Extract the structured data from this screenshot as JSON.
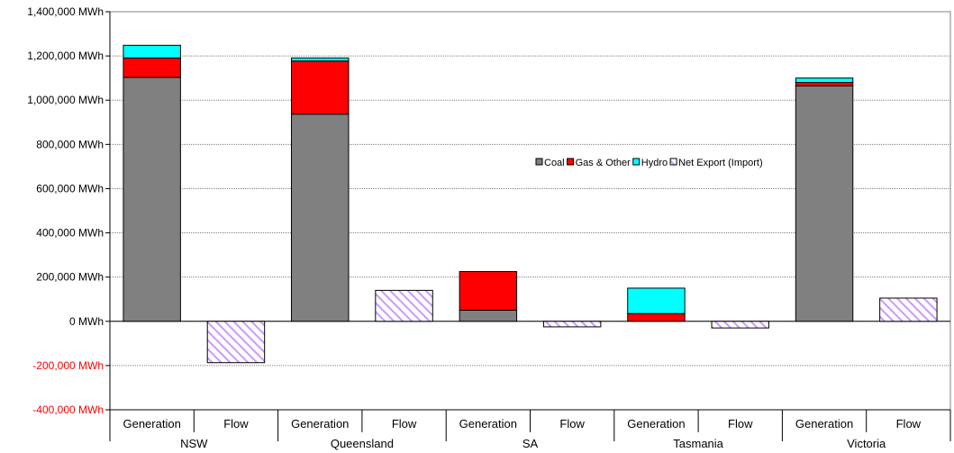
{
  "chart_data": {
    "type": "bar",
    "stacked": true,
    "unit_suffix": " MWh",
    "ylim": [
      -400000,
      1400000
    ],
    "ytick_step": 200000,
    "grid": true,
    "legend_position": "center-right",
    "colors": {
      "Coal": "#808080",
      "Gas & Other": "#ff0000",
      "Hydro": "#00ffff",
      "Net Export (Import)": "#cc99ff",
      "negative_tick": "#ff0000"
    },
    "groups": [
      {
        "name": "NSW",
        "subcategories": [
          "Generation",
          "Flow"
        ]
      },
      {
        "name": "Queensland",
        "subcategories": [
          "Generation",
          "Flow"
        ]
      },
      {
        "name": "SA",
        "subcategories": [
          "Generation",
          "Flow"
        ]
      },
      {
        "name": "Tasmania",
        "subcategories": [
          "Generation",
          "Flow"
        ]
      },
      {
        "name": "Victoria",
        "subcategories": [
          "Generation",
          "Flow"
        ]
      }
    ],
    "categories": [
      "NSW Generation",
      "NSW Flow",
      "Queensland Generation",
      "Queensland Flow",
      "SA Generation",
      "SA Flow",
      "Tasmania Generation",
      "Tasmania Flow",
      "Victoria Generation",
      "Victoria Flow"
    ],
    "series": [
      {
        "name": "Coal",
        "pattern": "solid",
        "values": [
          1103000,
          0,
          937000,
          0,
          50000,
          0,
          0,
          0,
          1065000,
          0
        ]
      },
      {
        "name": "Gas & Other",
        "pattern": "solid",
        "values": [
          88000,
          0,
          240000,
          0,
          175000,
          0,
          35000,
          0,
          15000,
          0
        ]
      },
      {
        "name": "Hydro",
        "pattern": "solid",
        "values": [
          57000,
          0,
          14000,
          0,
          0,
          0,
          115000,
          0,
          20000,
          0
        ]
      },
      {
        "name": "Net Export (Import)",
        "pattern": "hatched",
        "values": [
          0,
          -187000,
          0,
          140000,
          0,
          -25000,
          0,
          -30000,
          0,
          105000
        ]
      }
    ]
  }
}
